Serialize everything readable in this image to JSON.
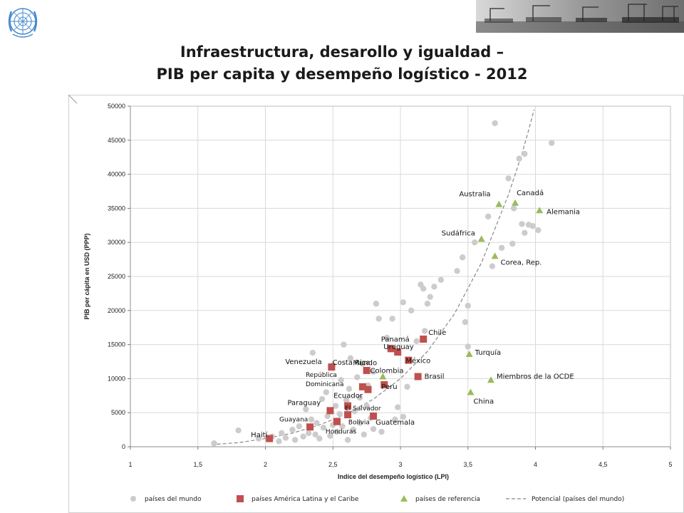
{
  "header": {
    "logo_icon": "un-emblem-icon",
    "photo_icon": "port-cranes-photo",
    "title_line1": "Infraestructura, desarollo y igualdad –",
    "title_line2": "PIB per capita y desempeño logístico - 2012"
  },
  "chart_data": {
    "type": "scatter",
    "title": "Infraestructura, desarollo y igualdad – PIB per capita y desempeño logístico - 2012",
    "xlabel": "Indice del  desempeño logístico  (LPI)",
    "ylabel": "PIB per cápita en USD (PPP)",
    "xlim": [
      1,
      5
    ],
    "ylim": [
      0,
      50000
    ],
    "x_ticks": [
      "1",
      "1,5",
      "2",
      "2,5",
      "3",
      "3,5",
      "4",
      "4,5",
      "5"
    ],
    "y_ticks": [
      "0",
      "5000",
      "10000",
      "15000",
      "20000",
      "25000",
      "30000",
      "35000",
      "40000",
      "45000",
      "50000"
    ],
    "grid": true,
    "legend_position": "bottom",
    "colors": {
      "mundo": "#cccccc",
      "latam": "#c0504d",
      "referencia": "#9bbb59",
      "potencial": "#888888",
      "grid": "#d9d9d9"
    },
    "series": [
      {
        "name": "países del mundo",
        "marker": "circle",
        "points": [
          [
            1.62,
            500
          ],
          [
            1.8,
            2400
          ],
          [
            1.95,
            1200
          ],
          [
            2.05,
            1500
          ],
          [
            2.1,
            800
          ],
          [
            2.12,
            2000
          ],
          [
            2.15,
            1300
          ],
          [
            2.2,
            2500
          ],
          [
            2.22,
            1000
          ],
          [
            2.25,
            3000
          ],
          [
            2.28,
            1500
          ],
          [
            2.3,
            5500
          ],
          [
            2.32,
            2000
          ],
          [
            2.34,
            4000
          ],
          [
            2.35,
            13800
          ],
          [
            2.37,
            1800
          ],
          [
            2.38,
            3500
          ],
          [
            2.4,
            1200
          ],
          [
            2.42,
            7000
          ],
          [
            2.43,
            2800
          ],
          [
            2.45,
            8000
          ],
          [
            2.46,
            4500
          ],
          [
            2.48,
            1600
          ],
          [
            2.5,
            3200
          ],
          [
            2.5,
            12000
          ],
          [
            2.52,
            6000
          ],
          [
            2.53,
            2200
          ],
          [
            2.55,
            4800
          ],
          [
            2.56,
            9800
          ],
          [
            2.57,
            3000
          ],
          [
            2.58,
            15000
          ],
          [
            2.6,
            6800
          ],
          [
            2.61,
            1000
          ],
          [
            2.62,
            8500
          ],
          [
            2.63,
            13000
          ],
          [
            2.65,
            2500
          ],
          [
            2.66,
            5200
          ],
          [
            2.68,
            10200
          ],
          [
            2.7,
            3500
          ],
          [
            2.7,
            7200
          ],
          [
            2.72,
            12200
          ],
          [
            2.73,
            1800
          ],
          [
            2.75,
            6000
          ],
          [
            2.76,
            9000
          ],
          [
            2.78,
            4200
          ],
          [
            2.8,
            11000
          ],
          [
            2.8,
            2600
          ],
          [
            2.82,
            21000
          ],
          [
            2.84,
            18800
          ],
          [
            2.86,
            2200
          ],
          [
            2.9,
            16000
          ],
          [
            2.94,
            18800
          ],
          [
            2.96,
            4000
          ],
          [
            2.98,
            5800
          ],
          [
            3.02,
            4400
          ],
          [
            3.02,
            21200
          ],
          [
            3.05,
            8800
          ],
          [
            3.08,
            20000
          ],
          [
            3.12,
            15500
          ],
          [
            3.15,
            23800
          ],
          [
            3.17,
            23200
          ],
          [
            3.18,
            17000
          ],
          [
            3.2,
            21000
          ],
          [
            3.22,
            22000
          ],
          [
            3.25,
            23500
          ],
          [
            3.3,
            24500
          ],
          [
            3.42,
            25800
          ],
          [
            3.46,
            27800
          ],
          [
            3.48,
            18300
          ],
          [
            3.5,
            14700
          ],
          [
            3.5,
            20700
          ],
          [
            3.55,
            30000
          ],
          [
            3.65,
            33800
          ],
          [
            3.68,
            26500
          ],
          [
            3.7,
            47500
          ],
          [
            3.75,
            29200
          ],
          [
            3.8,
            39400
          ],
          [
            3.83,
            29800
          ],
          [
            3.84,
            35000
          ],
          [
            3.88,
            42300
          ],
          [
            3.9,
            32700
          ],
          [
            3.92,
            43000
          ],
          [
            3.92,
            31400
          ],
          [
            3.95,
            32600
          ],
          [
            3.98,
            32400
          ],
          [
            4.02,
            31800
          ],
          [
            4.12,
            44600
          ]
        ]
      },
      {
        "name": "países América Latina y el Caribe",
        "marker": "square",
        "points": [
          {
            "label": "Haití",
            "x": 2.03,
            "y": 1200
          },
          {
            "label": "Guayana",
            "x": 2.33,
            "y": 2900
          },
          {
            "label": "Paraguay",
            "x": 2.48,
            "y": 5300
          },
          {
            "label": "Bolivia",
            "x": 2.53,
            "y": 3700
          },
          {
            "label": "Honduras",
            "x": 2.53,
            "y": 3700
          },
          {
            "label": "Venezuela",
            "x": 2.49,
            "y": 11700
          },
          {
            "label": "El Salvador",
            "x": 2.61,
            "y": 4700
          },
          {
            "label": "Ecuador",
            "x": 2.61,
            "y": 6000
          },
          {
            "label": "Costa Rica",
            "x": 2.75,
            "y": 11200
          },
          {
            "label": "República Dominicana",
            "x": 2.72,
            "y": 8800
          },
          {
            "label": "Guatemala",
            "x": 2.8,
            "y": 4500
          },
          {
            "label": "Colombia",
            "x": 2.76,
            "y": 8400
          },
          {
            "label": "Peru",
            "x": 2.88,
            "y": 9100
          },
          {
            "label": "Panamá",
            "x": 2.93,
            "y": 14400
          },
          {
            "label": "Uruguay",
            "x": 2.98,
            "y": 13900
          },
          {
            "label": "México",
            "x": 3.06,
            "y": 12700
          },
          {
            "label": "Brasil",
            "x": 3.13,
            "y": 10300
          },
          {
            "label": "Chile",
            "x": 3.17,
            "y": 15800
          }
        ]
      },
      {
        "name": "países de referencia",
        "marker": "triangle",
        "points": [
          {
            "label": "Mundo",
            "x": 2.87,
            "y": 10300
          },
          {
            "label": "China",
            "x": 3.52,
            "y": 8000
          },
          {
            "label": "Turquía",
            "x": 3.51,
            "y": 13600
          },
          {
            "label": "Miembros de la OCDE",
            "x": 3.67,
            "y": 9800
          },
          {
            "label": "Sudáfrica",
            "x": 3.6,
            "y": 30500
          },
          {
            "label": "Corea, Rep.",
            "x": 3.7,
            "y": 28000
          },
          {
            "label": "Australia",
            "x": 3.73,
            "y": 35600
          },
          {
            "label": "Canadá",
            "x": 3.85,
            "y": 35800
          },
          {
            "label": "Alemania",
            "x": 4.03,
            "y": 34700
          }
        ]
      },
      {
        "name": "Potencial (países del mundo)",
        "marker": "dashed-line",
        "points": [
          [
            1.6,
            300
          ],
          [
            1.8,
            600
          ],
          [
            2.0,
            1200
          ],
          [
            2.2,
            2000
          ],
          [
            2.4,
            3200
          ],
          [
            2.6,
            4800
          ],
          [
            2.8,
            7000
          ],
          [
            3.0,
            10000
          ],
          [
            3.2,
            14000
          ],
          [
            3.4,
            19500
          ],
          [
            3.6,
            27000
          ],
          [
            3.8,
            37000
          ],
          [
            3.85,
            40000
          ],
          [
            3.9,
            43000
          ],
          [
            3.95,
            46500
          ],
          [
            3.99,
            49500
          ]
        ]
      }
    ]
  }
}
